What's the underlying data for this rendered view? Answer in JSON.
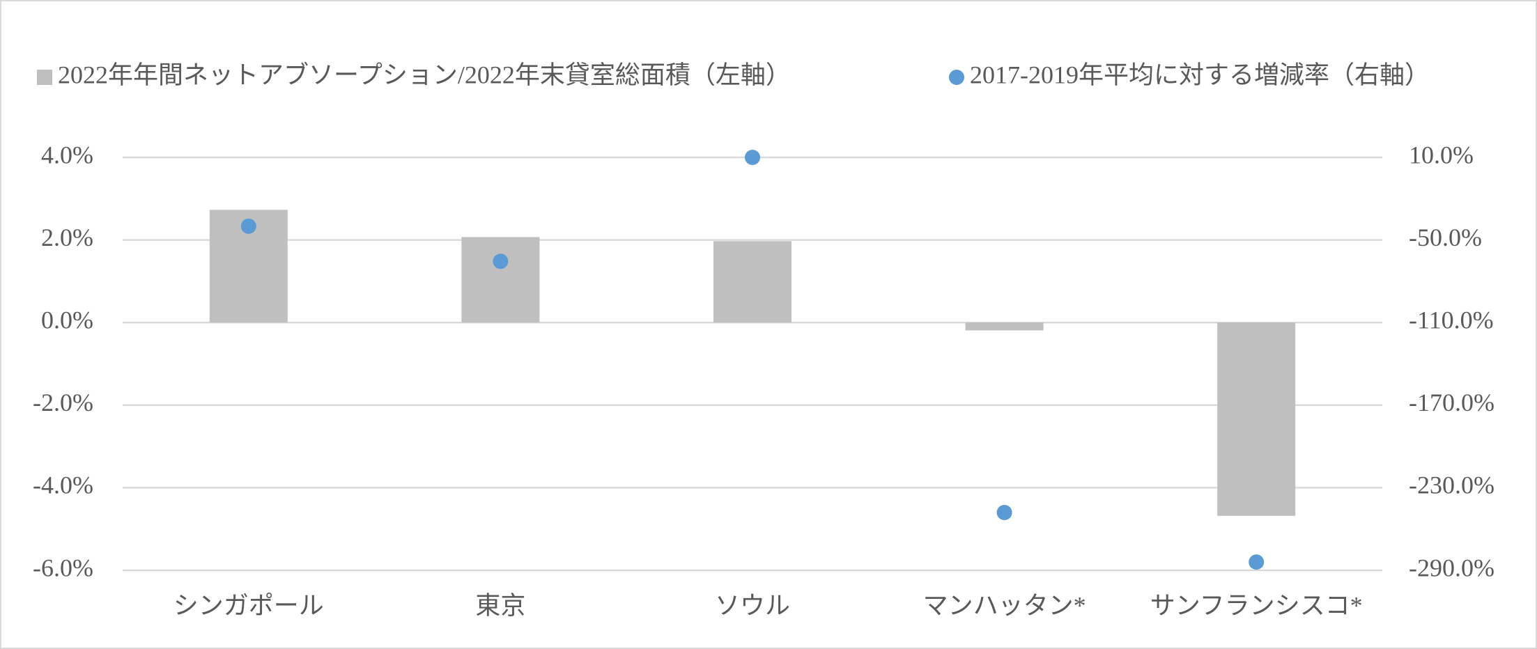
{
  "chart_data": {
    "type": "bar",
    "categories": [
      "シンガポール",
      "東京",
      "ソウル",
      "マンハッタン*",
      "サンフランシスコ*"
    ],
    "series": [
      {
        "name": "2022年年間ネットアブソープション/2022年末貸室総面積（左軸）",
        "type": "bar",
        "color": "#bfbfbf",
        "values": [
          2.73,
          2.07,
          1.97,
          -0.19,
          -4.68
        ]
      },
      {
        "name": "2017-2019年平均に対する増減率（右軸）",
        "type": "scatter",
        "axis": "y2",
        "color": "#5b9bd5",
        "values": [
          -40,
          -65.5,
          10,
          -248,
          -284
        ]
      }
    ],
    "ylim": [
      -6,
      4
    ],
    "yticks": [
      {
        "value": -6,
        "label": "-6.0%"
      },
      {
        "value": -4,
        "label": "-4.0%"
      },
      {
        "value": -2,
        "label": "-2.0%"
      },
      {
        "value": 0,
        "label": "0.0%"
      },
      {
        "value": 2,
        "label": "2.0%"
      },
      {
        "value": 4,
        "label": "4.0%"
      }
    ],
    "y2lim": [
      -290,
      10
    ],
    "y2ticks": [
      {
        "value": -290,
        "label": "-290.0%"
      },
      {
        "value": -230,
        "label": "-230.0%"
      },
      {
        "value": -170,
        "label": "-170.0%"
      },
      {
        "value": -110,
        "label": "-110.0%"
      },
      {
        "value": -50,
        "label": "-50.0%"
      },
      {
        "value": 10,
        "label": "10.0%"
      }
    ],
    "grid": true,
    "legend": "top"
  }
}
